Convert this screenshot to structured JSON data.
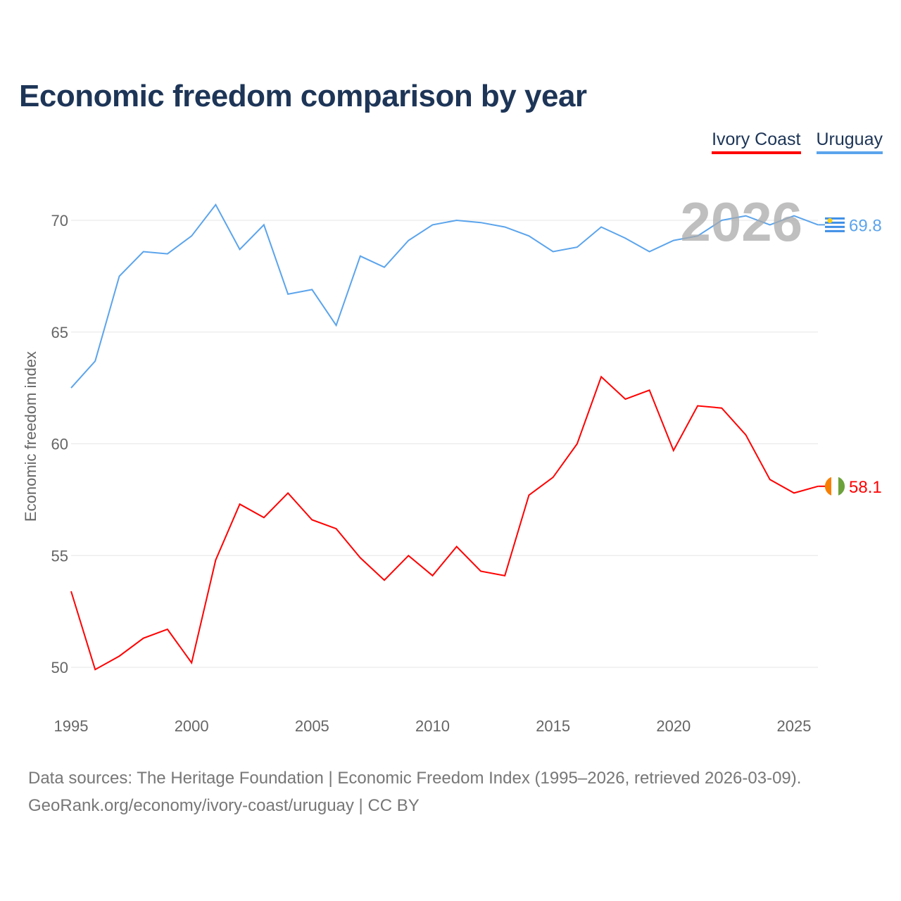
{
  "title": "Economic freedom comparison by year",
  "legend": [
    "Ivory Coast",
    "Uruguay"
  ],
  "year_label": "2026",
  "footer": {
    "line1": "Data sources: The Heritage Foundation | Economic Freedom Index (1995–2026, retrieved 2026-03-09).",
    "line2": "GeoRank.org/economy/ivory-coast/uruguay | CC BY"
  },
  "chart_data": {
    "type": "line",
    "title": "Economic freedom comparison by year",
    "xlabel": "",
    "ylabel": "Economic freedom index",
    "xlim": [
      1995,
      2026
    ],
    "ylim": [
      48.5,
      72
    ],
    "xticks": [
      1995,
      2000,
      2005,
      2010,
      2015,
      2020,
      2025
    ],
    "yticks": [
      50,
      55,
      60,
      65,
      70
    ],
    "grid": true,
    "x": [
      1995,
      1996,
      1997,
      1998,
      1999,
      2000,
      2001,
      2002,
      2003,
      2004,
      2005,
      2006,
      2007,
      2008,
      2009,
      2010,
      2011,
      2012,
      2013,
      2014,
      2015,
      2016,
      2017,
      2018,
      2019,
      2020,
      2021,
      2022,
      2023,
      2024,
      2025,
      2026
    ],
    "series": [
      {
        "name": "Ivory Coast",
        "color": "#ff0000",
        "end_label": "58.1",
        "values": [
          53.4,
          49.9,
          50.5,
          51.3,
          51.7,
          50.2,
          54.8,
          57.3,
          56.7,
          57.8,
          56.6,
          56.2,
          54.9,
          53.9,
          55.0,
          54.1,
          55.4,
          54.3,
          54.1,
          57.7,
          58.5,
          60.0,
          63.0,
          62.0,
          62.4,
          59.7,
          61.7,
          61.6,
          60.4,
          58.4,
          57.8,
          58.1
        ]
      },
      {
        "name": "Uruguay",
        "color": "#5ba4ec",
        "end_label": "69.8",
        "values": [
          62.5,
          63.7,
          67.5,
          68.6,
          68.5,
          69.3,
          70.7,
          68.7,
          69.8,
          66.7,
          66.9,
          65.3,
          68.4,
          67.9,
          69.1,
          69.8,
          70.0,
          69.9,
          69.7,
          69.3,
          68.6,
          68.8,
          69.7,
          69.2,
          68.6,
          69.1,
          69.3,
          70.0,
          70.2,
          69.8,
          70.2,
          69.8
        ]
      }
    ]
  }
}
